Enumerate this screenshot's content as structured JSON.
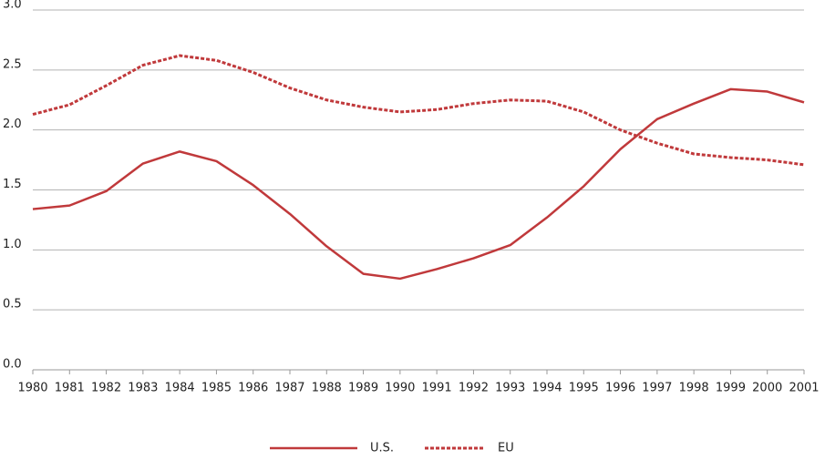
{
  "chart_data": {
    "type": "line",
    "categories": [
      "1980",
      "1981",
      "1982",
      "1983",
      "1984",
      "1985",
      "1986",
      "1987",
      "1988",
      "1989",
      "1990",
      "1991",
      "1992",
      "1993",
      "1994",
      "1995",
      "1996",
      "1997",
      "1998",
      "1999",
      "2000",
      "2001"
    ],
    "series": [
      {
        "name": "U.S.",
        "color": "#c0393b",
        "dash": false,
        "values": [
          1.34,
          1.37,
          1.49,
          1.72,
          1.82,
          1.74,
          1.54,
          1.3,
          1.03,
          0.8,
          0.76,
          0.84,
          0.93,
          1.04,
          1.27,
          1.53,
          1.84,
          2.09,
          2.22,
          2.34,
          2.32,
          2.23
        ]
      },
      {
        "name": "EU",
        "color": "#c0393b",
        "dash": true,
        "values": [
          2.13,
          2.21,
          2.37,
          2.54,
          2.62,
          2.58,
          2.48,
          2.35,
          2.25,
          2.19,
          2.15,
          2.17,
          2.22,
          2.25,
          2.24,
          2.15,
          2.0,
          1.89,
          1.8,
          1.77,
          1.75,
          1.71
        ]
      }
    ],
    "ylim": [
      0,
      3
    ],
    "yticks": [
      {
        "value": 0,
        "label": "0.0"
      },
      0.5,
      {
        "value": 1,
        "label": "1.0"
      },
      1.5,
      {
        "value": 2,
        "label": "2.0"
      },
      2.5,
      {
        "value": 3,
        "label": "3.0"
      }
    ],
    "grid": true,
    "legend": "bottom"
  }
}
